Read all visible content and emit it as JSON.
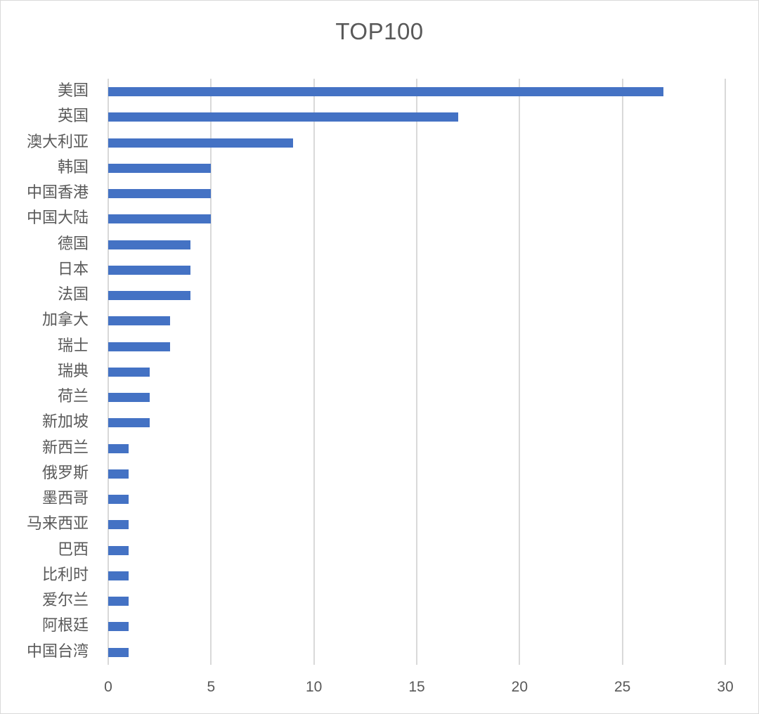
{
  "chart_data": {
    "type": "bar",
    "orientation": "horizontal",
    "title": "TOP100",
    "xlabel": "",
    "ylabel": "",
    "xlim": [
      0,
      30
    ],
    "x_ticks": [
      0,
      5,
      10,
      15,
      20,
      25,
      30
    ],
    "grid": "vertical",
    "legend": null,
    "bar_color": "#4472c4",
    "categories": [
      "美国",
      "英国",
      "澳大利亚",
      "韩国",
      "中国香港",
      "中国大陆",
      "德国",
      "日本",
      "法国",
      "加拿大",
      "瑞士",
      "瑞典",
      "荷兰",
      "新加坡",
      "新西兰",
      "俄罗斯",
      "墨西哥",
      "马来西亚",
      "巴西",
      "比利时",
      "爱尔兰",
      "阿根廷",
      "中国台湾"
    ],
    "values": [
      27,
      17,
      9,
      5,
      5,
      5,
      4,
      4,
      4,
      3,
      3,
      2,
      2,
      2,
      1,
      1,
      1,
      1,
      1,
      1,
      1,
      1,
      1
    ]
  },
  "x_tick_labels": [
    "0",
    "5",
    "10",
    "15",
    "20",
    "25",
    "30"
  ]
}
